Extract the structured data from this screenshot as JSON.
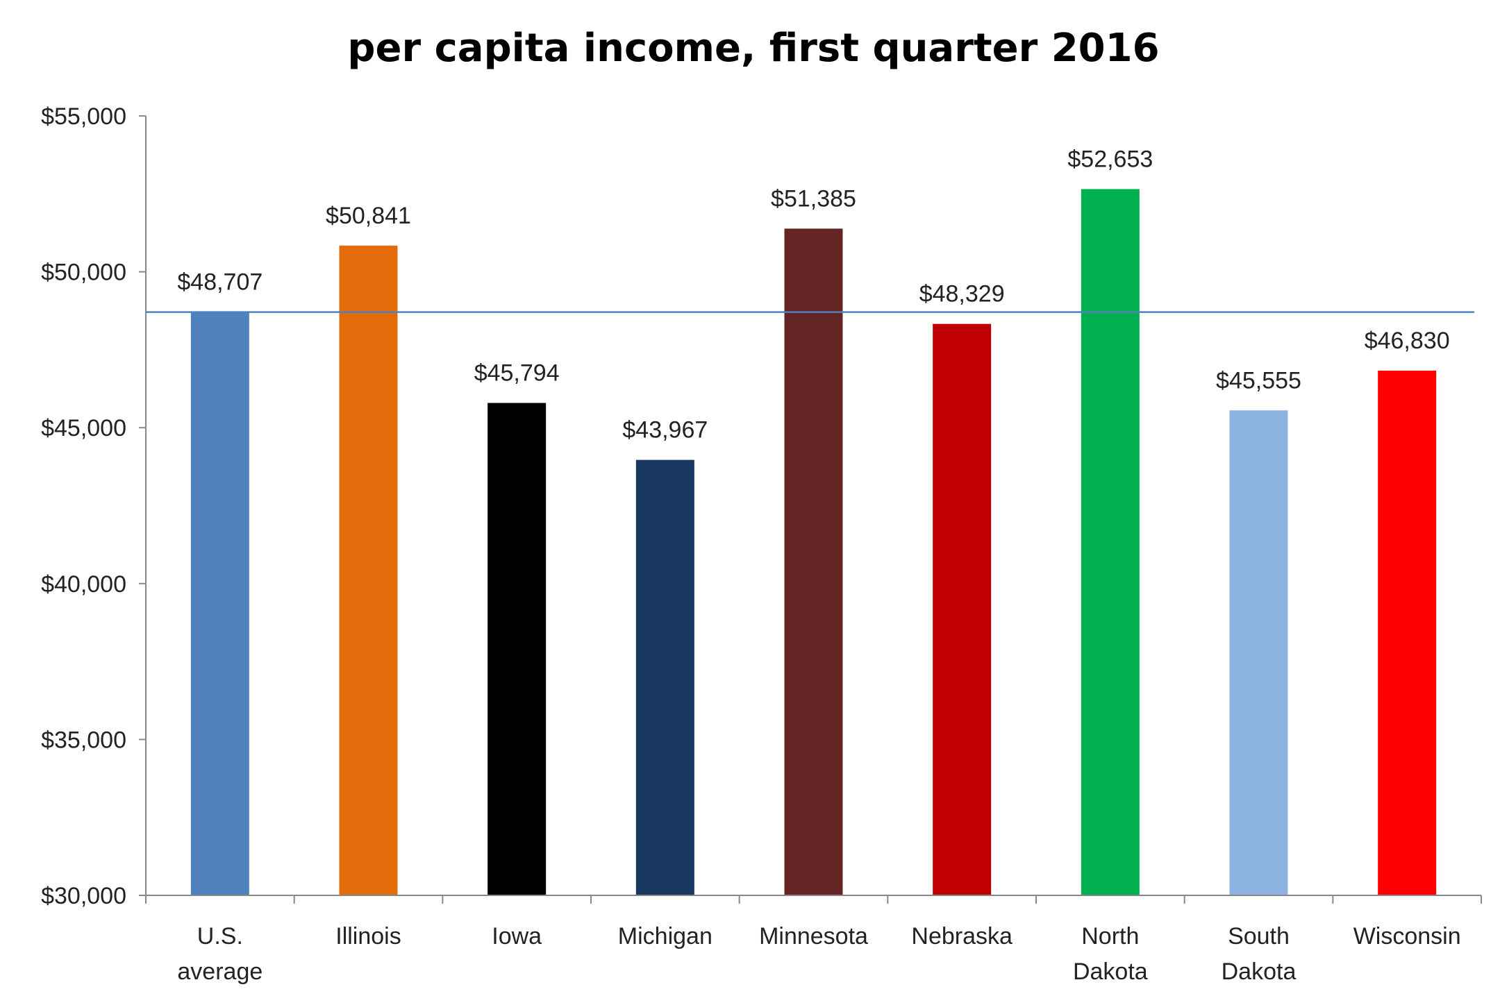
{
  "chart_data": {
    "type": "bar",
    "title": "per capita income, first quarter 2016",
    "xlabel": "",
    "ylabel": "",
    "ylim": [
      30000,
      55000
    ],
    "yticks": [
      30000,
      35000,
      40000,
      45000,
      50000,
      55000
    ],
    "ytick_labels": [
      "$30,000",
      "$35,000",
      "$40,000",
      "$45,000",
      "$50,000",
      "$55,000"
    ],
    "grid": false,
    "categories": [
      [
        "U.S.",
        "average"
      ],
      [
        "Illinois"
      ],
      [
        "Iowa"
      ],
      [
        "Michigan"
      ],
      [
        "Minnesota"
      ],
      [
        "Nebraska"
      ],
      [
        "North",
        "Dakota"
      ],
      [
        "South",
        "Dakota"
      ],
      [
        "Wisconsin"
      ]
    ],
    "values": [
      48707,
      50841,
      45794,
      43967,
      51385,
      48329,
      52653,
      45555,
      46830
    ],
    "data_labels": [
      "$48,707",
      "$50,841",
      "$45,794",
      "$43,967",
      "$51,385",
      "$48,329",
      "$52,653",
      "$45,555",
      "$46,830"
    ],
    "colors": [
      "#4f81bd",
      "#e36c0a",
      "#000000",
      "#17375e",
      "#632523",
      "#c00000",
      "#00b050",
      "#8db3e2",
      "#ff0000"
    ],
    "reference_line": {
      "value": 48707,
      "color": "#4f81bd"
    },
    "axis_color": "#888888"
  }
}
